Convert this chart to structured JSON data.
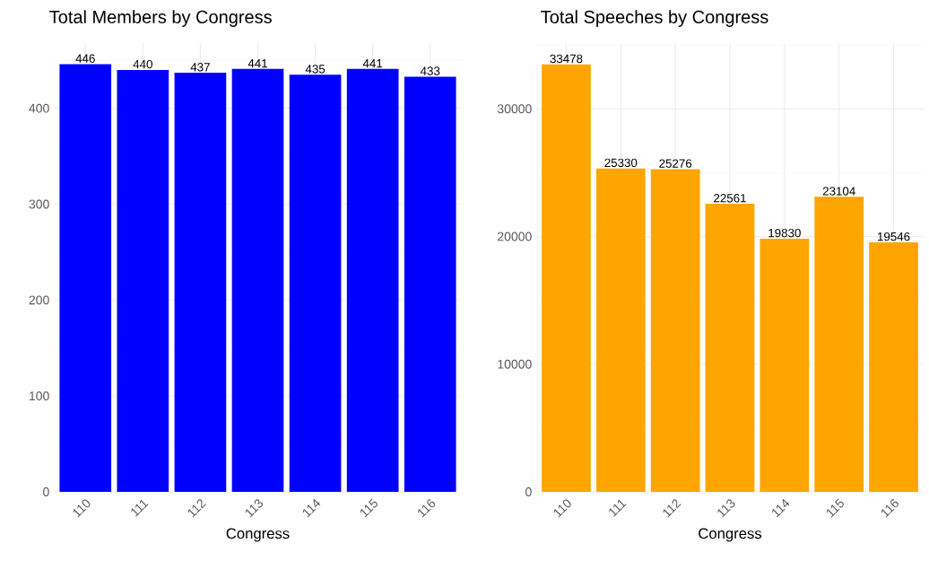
{
  "chart_data": [
    {
      "type": "bar",
      "title": "Total Members by Congress",
      "xlabel": "Congress",
      "categories": [
        "110",
        "111",
        "112",
        "113",
        "114",
        "115",
        "116"
      ],
      "values": [
        446,
        440,
        437,
        441,
        435,
        441,
        433
      ],
      "color": "#0000ff",
      "ylim": [
        0,
        468
      ],
      "yticks": [
        0,
        100,
        200,
        300,
        400
      ],
      "grid": true,
      "data_labels": true
    },
    {
      "type": "bar",
      "title": "Total Speeches by Congress",
      "xlabel": "Congress",
      "categories": [
        "110",
        "111",
        "112",
        "113",
        "114",
        "115",
        "116"
      ],
      "values": [
        33478,
        25330,
        25276,
        22561,
        19830,
        23104,
        19546
      ],
      "color": "#ffa500",
      "ylim": [
        0,
        35150
      ],
      "yticks": [
        0,
        10000,
        20000,
        30000
      ],
      "grid": true,
      "data_labels": true
    }
  ]
}
